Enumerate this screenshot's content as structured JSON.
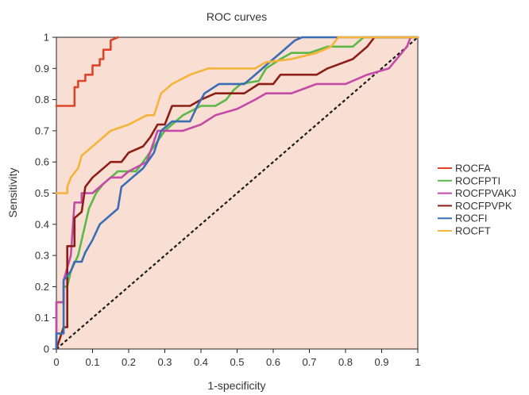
{
  "chart_data": {
    "type": "line",
    "title": "ROC curves",
    "xlabel": "1-specificity",
    "ylabel": "Sensitivity",
    "xlim": [
      0,
      1
    ],
    "ylim": [
      0,
      1
    ],
    "x_ticks": [
      "0",
      "0.1",
      "0.2",
      "0.3",
      "0.4",
      "0.5",
      "0.6",
      "0.7",
      "0.8",
      "0.9",
      "1"
    ],
    "y_ticks": [
      "0",
      "0.1",
      "0.2",
      "0.3",
      "0.4",
      "0.5",
      "0.6",
      "0.7",
      "0.8",
      "0.9",
      "1"
    ],
    "plot_background": "#f9dfd3",
    "grid": false,
    "legend_position": "right",
    "reference_line": {
      "style": "dashed",
      "color": "#1a1a1a",
      "points": [
        [
          0,
          0
        ],
        [
          1,
          1
        ]
      ]
    },
    "series": [
      {
        "name": "ROCFA",
        "color": "#e0452b",
        "points": [
          [
            0,
            0.78
          ],
          [
            0.05,
            0.78
          ],
          [
            0.05,
            0.84
          ],
          [
            0.06,
            0.84
          ],
          [
            0.06,
            0.86
          ],
          [
            0.08,
            0.86
          ],
          [
            0.08,
            0.88
          ],
          [
            0.1,
            0.88
          ],
          [
            0.1,
            0.91
          ],
          [
            0.12,
            0.91
          ],
          [
            0.12,
            0.93
          ],
          [
            0.13,
            0.93
          ],
          [
            0.13,
            0.96
          ],
          [
            0.15,
            0.96
          ],
          [
            0.15,
            0.99
          ],
          [
            0.17,
            1
          ]
        ]
      },
      {
        "name": "ROCFPTI",
        "color": "#5bb848",
        "points": [
          [
            0,
            0
          ],
          [
            0,
            0.15
          ],
          [
            0.02,
            0.15
          ],
          [
            0.02,
            0.2
          ],
          [
            0.03,
            0.2
          ],
          [
            0.04,
            0.25
          ],
          [
            0.06,
            0.3
          ],
          [
            0.07,
            0.35
          ],
          [
            0.08,
            0.4
          ],
          [
            0.09,
            0.45
          ],
          [
            0.11,
            0.5
          ],
          [
            0.13,
            0.53
          ],
          [
            0.15,
            0.55
          ],
          [
            0.17,
            0.57
          ],
          [
            0.22,
            0.57
          ],
          [
            0.24,
            0.6
          ],
          [
            0.27,
            0.65
          ],
          [
            0.3,
            0.7
          ],
          [
            0.35,
            0.75
          ],
          [
            0.4,
            0.78
          ],
          [
            0.44,
            0.78
          ],
          [
            0.47,
            0.8
          ],
          [
            0.49,
            0.83
          ],
          [
            0.51,
            0.85
          ],
          [
            0.56,
            0.86
          ],
          [
            0.58,
            0.9
          ],
          [
            0.62,
            0.93
          ],
          [
            0.65,
            0.95
          ],
          [
            0.7,
            0.95
          ],
          [
            0.75,
            0.97
          ],
          [
            0.82,
            0.97
          ],
          [
            0.85,
            1.0
          ],
          [
            1,
            1
          ]
        ]
      },
      {
        "name": "ROCFPVAKJ",
        "color": "#c44aa8",
        "points": [
          [
            0,
            0
          ],
          [
            0,
            0.15
          ],
          [
            0.02,
            0.15
          ],
          [
            0.02,
            0.22
          ],
          [
            0.04,
            0.3
          ],
          [
            0.05,
            0.47
          ],
          [
            0.07,
            0.47
          ],
          [
            0.07,
            0.5
          ],
          [
            0.1,
            0.5
          ],
          [
            0.12,
            0.52
          ],
          [
            0.15,
            0.55
          ],
          [
            0.18,
            0.55
          ],
          [
            0.2,
            0.57
          ],
          [
            0.25,
            0.6
          ],
          [
            0.28,
            0.7
          ],
          [
            0.35,
            0.7
          ],
          [
            0.4,
            0.72
          ],
          [
            0.44,
            0.75
          ],
          [
            0.5,
            0.77
          ],
          [
            0.55,
            0.8
          ],
          [
            0.58,
            0.82
          ],
          [
            0.65,
            0.82
          ],
          [
            0.72,
            0.85
          ],
          [
            0.8,
            0.85
          ],
          [
            0.86,
            0.88
          ],
          [
            0.92,
            0.9
          ],
          [
            0.97,
            0.97
          ],
          [
            0.98,
            1.0
          ],
          [
            1,
            1
          ]
        ]
      },
      {
        "name": "ROCFPVPK",
        "color": "#8b1e16",
        "points": [
          [
            0,
            0
          ],
          [
            0.02,
            0.07
          ],
          [
            0.03,
            0.07
          ],
          [
            0.03,
            0.33
          ],
          [
            0.05,
            0.33
          ],
          [
            0.05,
            0.42
          ],
          [
            0.07,
            0.44
          ],
          [
            0.08,
            0.52
          ],
          [
            0.1,
            0.55
          ],
          [
            0.12,
            0.57
          ],
          [
            0.15,
            0.6
          ],
          [
            0.18,
            0.6
          ],
          [
            0.2,
            0.63
          ],
          [
            0.24,
            0.65
          ],
          [
            0.26,
            0.68
          ],
          [
            0.28,
            0.72
          ],
          [
            0.3,
            0.72
          ],
          [
            0.32,
            0.78
          ],
          [
            0.37,
            0.78
          ],
          [
            0.4,
            0.8
          ],
          [
            0.44,
            0.82
          ],
          [
            0.52,
            0.82
          ],
          [
            0.56,
            0.85
          ],
          [
            0.6,
            0.85
          ],
          [
            0.62,
            0.88
          ],
          [
            0.72,
            0.88
          ],
          [
            0.75,
            0.9
          ],
          [
            0.82,
            0.93
          ],
          [
            0.86,
            0.97
          ],
          [
            0.88,
            1.0
          ],
          [
            1,
            1
          ]
        ]
      },
      {
        "name": "ROCFI",
        "color": "#3b6db5",
        "points": [
          [
            0,
            0
          ],
          [
            0,
            0.05
          ],
          [
            0.02,
            0.05
          ],
          [
            0.02,
            0.22
          ],
          [
            0.04,
            0.25
          ],
          [
            0.05,
            0.28
          ],
          [
            0.07,
            0.28
          ],
          [
            0.08,
            0.31
          ],
          [
            0.1,
            0.35
          ],
          [
            0.12,
            0.4
          ],
          [
            0.17,
            0.45
          ],
          [
            0.18,
            0.52
          ],
          [
            0.21,
            0.55
          ],
          [
            0.24,
            0.58
          ],
          [
            0.27,
            0.63
          ],
          [
            0.29,
            0.7
          ],
          [
            0.32,
            0.73
          ],
          [
            0.37,
            0.73
          ],
          [
            0.39,
            0.78
          ],
          [
            0.41,
            0.82
          ],
          [
            0.45,
            0.85
          ],
          [
            0.52,
            0.85
          ],
          [
            0.55,
            0.88
          ],
          [
            0.59,
            0.92
          ],
          [
            0.62,
            0.95
          ],
          [
            0.66,
            0.99
          ],
          [
            0.68,
            1.0
          ],
          [
            1,
            1
          ]
        ]
      },
      {
        "name": "ROCFT",
        "color": "#f4b33a",
        "points": [
          [
            0,
            0.5
          ],
          [
            0.03,
            0.5
          ],
          [
            0.03,
            0.52
          ],
          [
            0.04,
            0.55
          ],
          [
            0.06,
            0.58
          ],
          [
            0.07,
            0.62
          ],
          [
            0.09,
            0.64
          ],
          [
            0.12,
            0.67
          ],
          [
            0.15,
            0.7
          ],
          [
            0.2,
            0.72
          ],
          [
            0.25,
            0.75
          ],
          [
            0.27,
            0.75
          ],
          [
            0.29,
            0.82
          ],
          [
            0.32,
            0.85
          ],
          [
            0.37,
            0.88
          ],
          [
            0.42,
            0.9
          ],
          [
            0.55,
            0.9
          ],
          [
            0.58,
            0.92
          ],
          [
            0.65,
            0.93
          ],
          [
            0.72,
            0.95
          ],
          [
            0.76,
            0.97
          ],
          [
            0.78,
            1.0
          ],
          [
            1,
            1
          ]
        ]
      }
    ]
  }
}
